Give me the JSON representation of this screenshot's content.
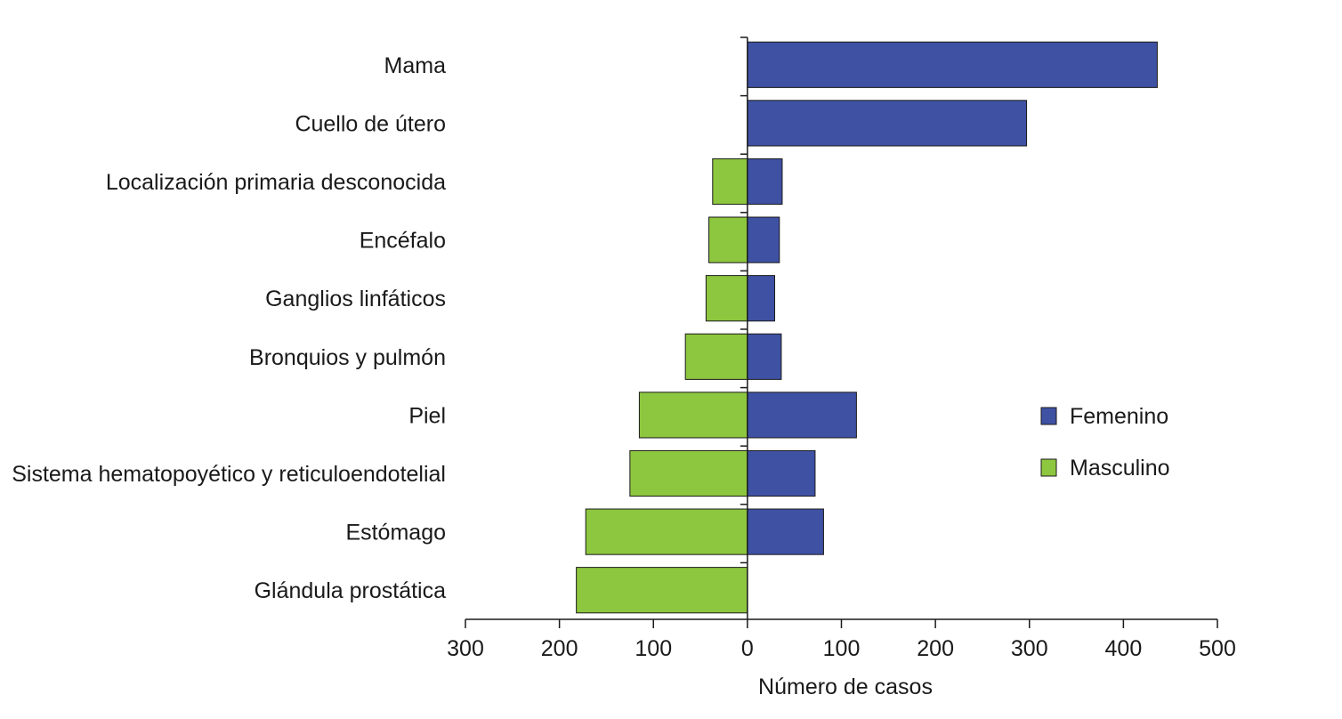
{
  "chart_data": {
    "type": "bar",
    "orientation": "horizontal",
    "layout": "diverging",
    "categories": [
      "Mama",
      "Cuello de útero",
      "Localización primaria desconocida",
      "Encéfalo",
      "Ganglios linfáticos",
      "Bronquios y pulmón",
      "Piel",
      "Sistema hematopoyético y reticuloendotelial",
      "Estómago",
      "Glándula prostática"
    ],
    "series": [
      {
        "name": "Femenino",
        "side": "right",
        "color": "#3f51a3",
        "values": [
          436,
          297,
          37,
          34,
          29,
          36,
          116,
          72,
          81,
          0
        ]
      },
      {
        "name": "Masculino",
        "side": "left",
        "color": "#8dc63f",
        "values": [
          0,
          0,
          37,
          41,
          44,
          66,
          115,
          125,
          172,
          182
        ]
      }
    ],
    "xlabel": "Número de casos",
    "ylabel": "",
    "xlim": [
      -300,
      500
    ],
    "x_ticks": [
      -300,
      -200,
      -100,
      0,
      100,
      200,
      300,
      400,
      500
    ],
    "x_tick_labels": [
      "300",
      "200",
      "100",
      "0",
      "100",
      "200",
      "300",
      "400",
      "500"
    ],
    "legend_position": "right",
    "grid": false
  }
}
